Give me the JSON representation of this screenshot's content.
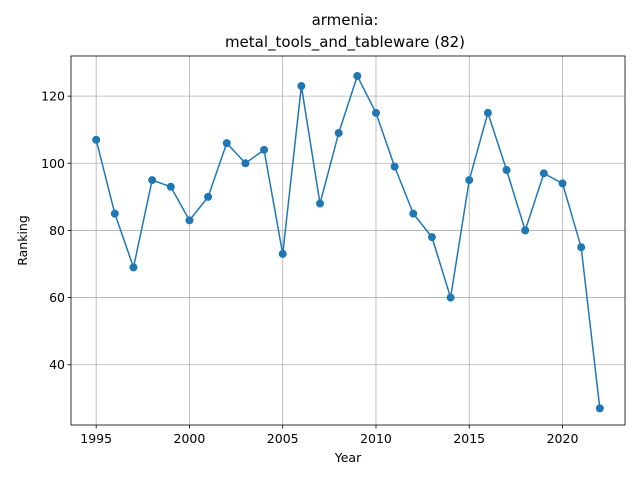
{
  "chart_data": {
    "type": "line",
    "title_line1": "armenia:",
    "title_line2": "metal_tools_and_tableware (82)",
    "xlabel": "Year",
    "ylabel": "Ranking",
    "xlim": [
      1993.65,
      2023.35
    ],
    "ylim": [
      22.05,
      131.95
    ],
    "x_ticks": [
      1995,
      2000,
      2005,
      2010,
      2015,
      2020
    ],
    "y_ticks": [
      40,
      60,
      80,
      100,
      120
    ],
    "grid": true,
    "marker": "circle",
    "series": [
      {
        "color": "#1f77b4",
        "x": [
          1995,
          1996,
          1997,
          1998,
          1999,
          2000,
          2001,
          2002,
          2003,
          2004,
          2005,
          2006,
          2007,
          2008,
          2009,
          2010,
          2011,
          2012,
          2013,
          2014,
          2015,
          2016,
          2017,
          2018,
          2019,
          2020,
          2021,
          2022
        ],
        "y": [
          107,
          85,
          69,
          95,
          93,
          83,
          90,
          106,
          100,
          104,
          73,
          123,
          88,
          109,
          126,
          115,
          99,
          85,
          78,
          60,
          95,
          115,
          98,
          80,
          97,
          94,
          75,
          27
        ]
      }
    ]
  }
}
